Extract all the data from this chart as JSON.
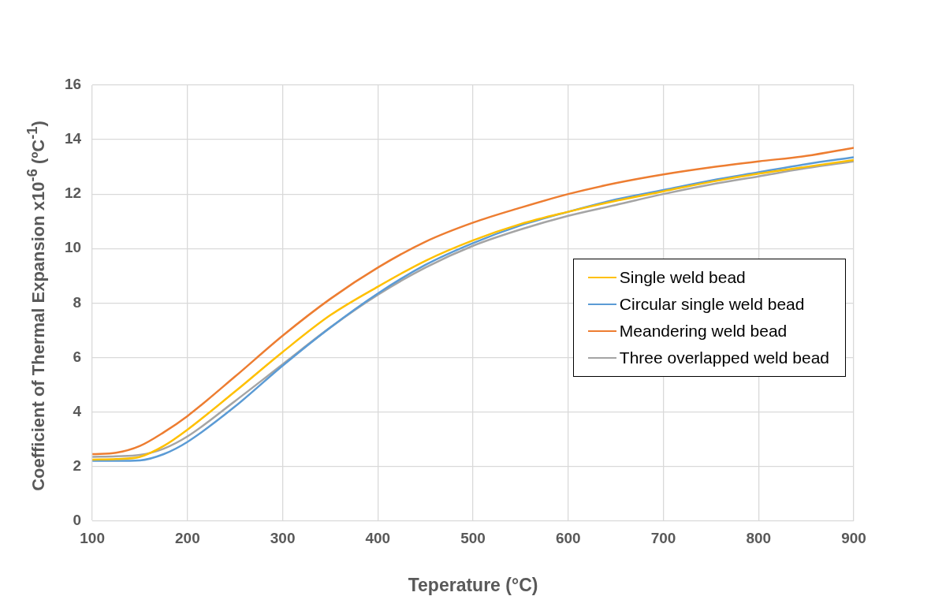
{
  "chart_data": {
    "type": "line",
    "xlabel": "Teperature (°C)",
    "ylabel": "Coefficient of Thermal Expansion x10$^{-6}$ (ºC$^{-1}$)",
    "xlim": [
      100,
      900
    ],
    "xticks": [
      100,
      200,
      300,
      400,
      500,
      600,
      700,
      800,
      900
    ],
    "ylim": [
      0,
      16
    ],
    "yticks": [
      0,
      2,
      4,
      6,
      8,
      10,
      12,
      14,
      16
    ],
    "grid": true,
    "legend": "right",
    "marker": "none",
    "line_style": "solid",
    "x": [
      100,
      125,
      150,
      175,
      200,
      250,
      300,
      350,
      400,
      450,
      500,
      550,
      600,
      650,
      700,
      750,
      800,
      850,
      900
    ],
    "series": [
      {
        "name": "Single weld bead",
        "color": "#ffc000",
        "values": [
          2.25,
          2.27,
          2.35,
          2.75,
          3.35,
          4.75,
          6.2,
          7.55,
          8.6,
          9.55,
          10.3,
          10.9,
          11.35,
          11.75,
          12.1,
          12.45,
          12.75,
          13.0,
          13.25
        ]
      },
      {
        "name": "Circular single weld bead",
        "color": "#5b9bd5",
        "values": [
          2.2,
          2.2,
          2.22,
          2.45,
          2.9,
          4.2,
          5.7,
          7.1,
          8.35,
          9.4,
          10.2,
          10.85,
          11.35,
          11.8,
          12.15,
          12.5,
          12.8,
          13.1,
          13.35
        ]
      },
      {
        "name": "Meandering weld bead",
        "color": "#ed7d31",
        "values": [
          2.45,
          2.5,
          2.75,
          3.25,
          3.85,
          5.3,
          6.8,
          8.15,
          9.3,
          10.25,
          10.95,
          11.5,
          12.0,
          12.4,
          12.72,
          12.98,
          13.2,
          13.4,
          13.7
        ]
      },
      {
        "name": "Three overlapped weld bead",
        "color": "#a5a5a5",
        "values": [
          2.35,
          2.37,
          2.42,
          2.65,
          3.1,
          4.4,
          5.75,
          7.1,
          8.3,
          9.3,
          10.1,
          10.7,
          11.2,
          11.6,
          12.0,
          12.35,
          12.65,
          12.95,
          13.2
        ]
      }
    ]
  }
}
